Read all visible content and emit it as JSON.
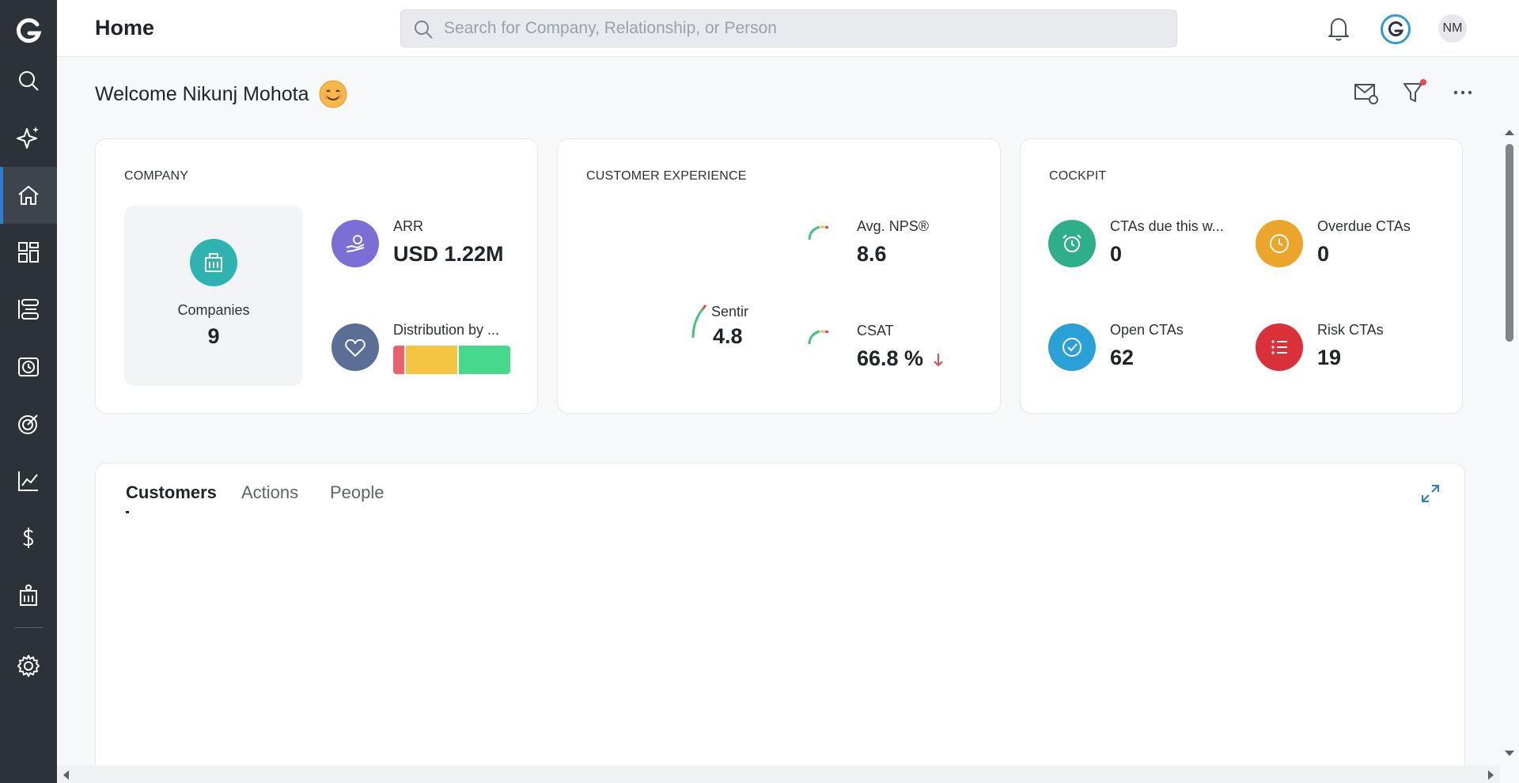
{
  "header": {
    "title": "Home",
    "search_placeholder": "Search for Company, Relationship, or Person",
    "avatar_initials": "NM"
  },
  "welcome": {
    "text": "Welcome Nikunj Mohota"
  },
  "company_card": {
    "title": "COMPANY",
    "companies_label": "Companies",
    "companies_value": "9",
    "arr_label": "ARR",
    "arr_value": "USD 1.22M",
    "distribution_label": "Distribution by ...",
    "distribution_segments": [
      {
        "color": "#e8636b",
        "share": 0.1
      },
      {
        "color": "#f4c542",
        "share": 0.45
      },
      {
        "color": "#47d88e",
        "share": 0.45
      }
    ]
  },
  "cx_card": {
    "title": "CUSTOMER EXPERIENCE",
    "sentiment_label": "Sentir",
    "sentiment_value": "4.8",
    "nps_label": "Avg. NPS®",
    "nps_value": "8.6",
    "csat_label": "CSAT",
    "csat_value": "66.8 %"
  },
  "cockpit_card": {
    "title": "COCKPIT",
    "items": [
      {
        "label": "CTAs due this w...",
        "value": "0",
        "color": "#2fae8a"
      },
      {
        "label": "Overdue CTAs",
        "value": "0",
        "color": "#eba52a"
      },
      {
        "label": "Open CTAs",
        "value": "62",
        "color": "#2aa1d6"
      },
      {
        "label": "Risk CTAs",
        "value": "19",
        "color": "#d9303a"
      }
    ]
  },
  "tabs": [
    {
      "label": "Customers"
    },
    {
      "label": "Actions"
    },
    {
      "label": "People"
    }
  ],
  "colors": {
    "sidebar": "#2c3238",
    "accent": "#2f7dd3",
    "company_icon": "#2fb3b0",
    "arr_icon": "#7b6fd6",
    "distribution_icon": "#5b6f96"
  }
}
